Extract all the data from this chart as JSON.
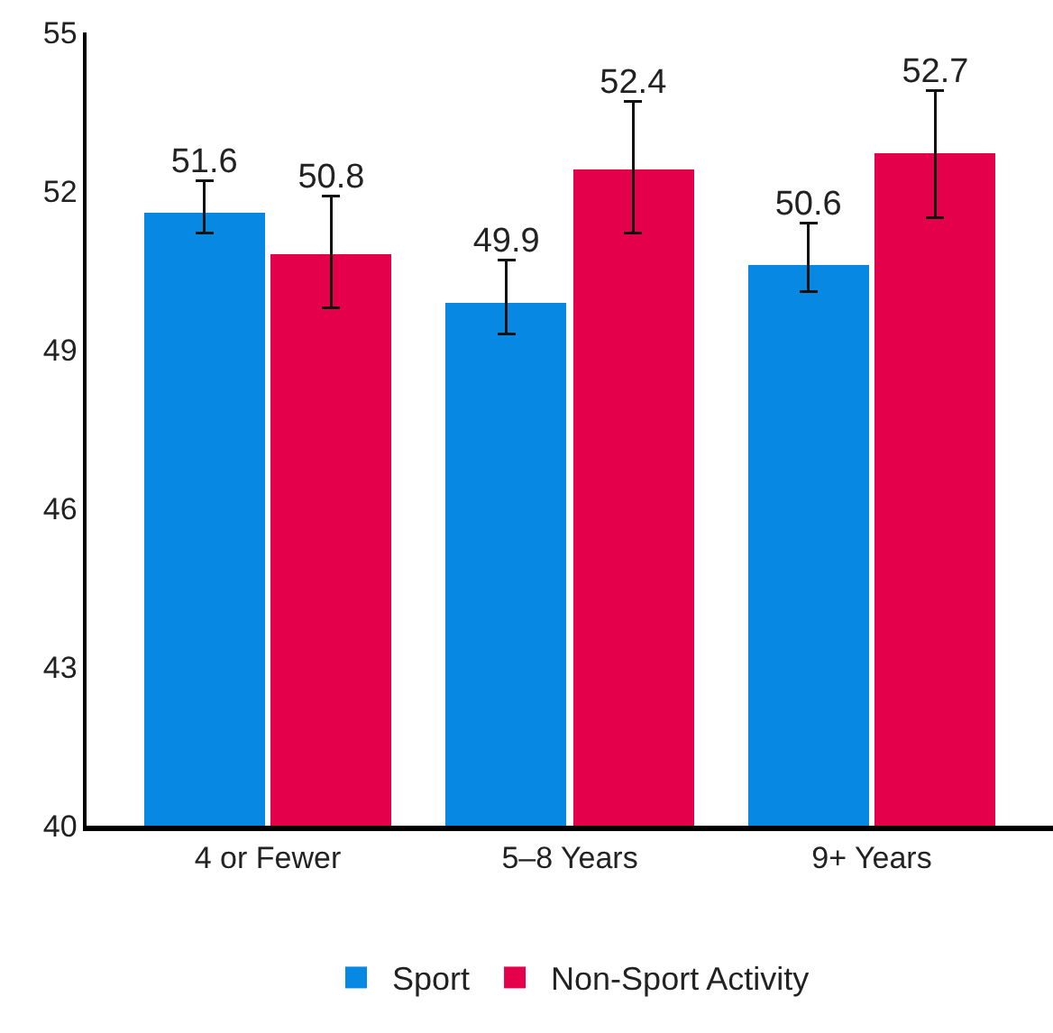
{
  "chart_data": {
    "type": "bar",
    "categories": [
      "4 or Fewer",
      "5–8 Years",
      "9+ Years"
    ],
    "series": [
      {
        "name": "Sport",
        "color": "#0788e3",
        "values": [
          51.6,
          49.9,
          50.6
        ],
        "errors": [
          [
            51.2,
            52.2
          ],
          [
            49.3,
            50.7
          ],
          [
            50.1,
            51.4
          ]
        ]
      },
      {
        "name": "Non-Sport Activity",
        "color": "#e5004b",
        "values": [
          50.8,
          52.4,
          52.7
        ],
        "errors": [
          [
            49.8,
            51.9
          ],
          [
            51.2,
            53.7
          ],
          [
            51.5,
            53.9
          ]
        ]
      }
    ],
    "ylim": [
      40,
      55
    ],
    "yticks": [
      40,
      43,
      46,
      49,
      52,
      55
    ],
    "data_labels": true,
    "legend": "bottom"
  }
}
